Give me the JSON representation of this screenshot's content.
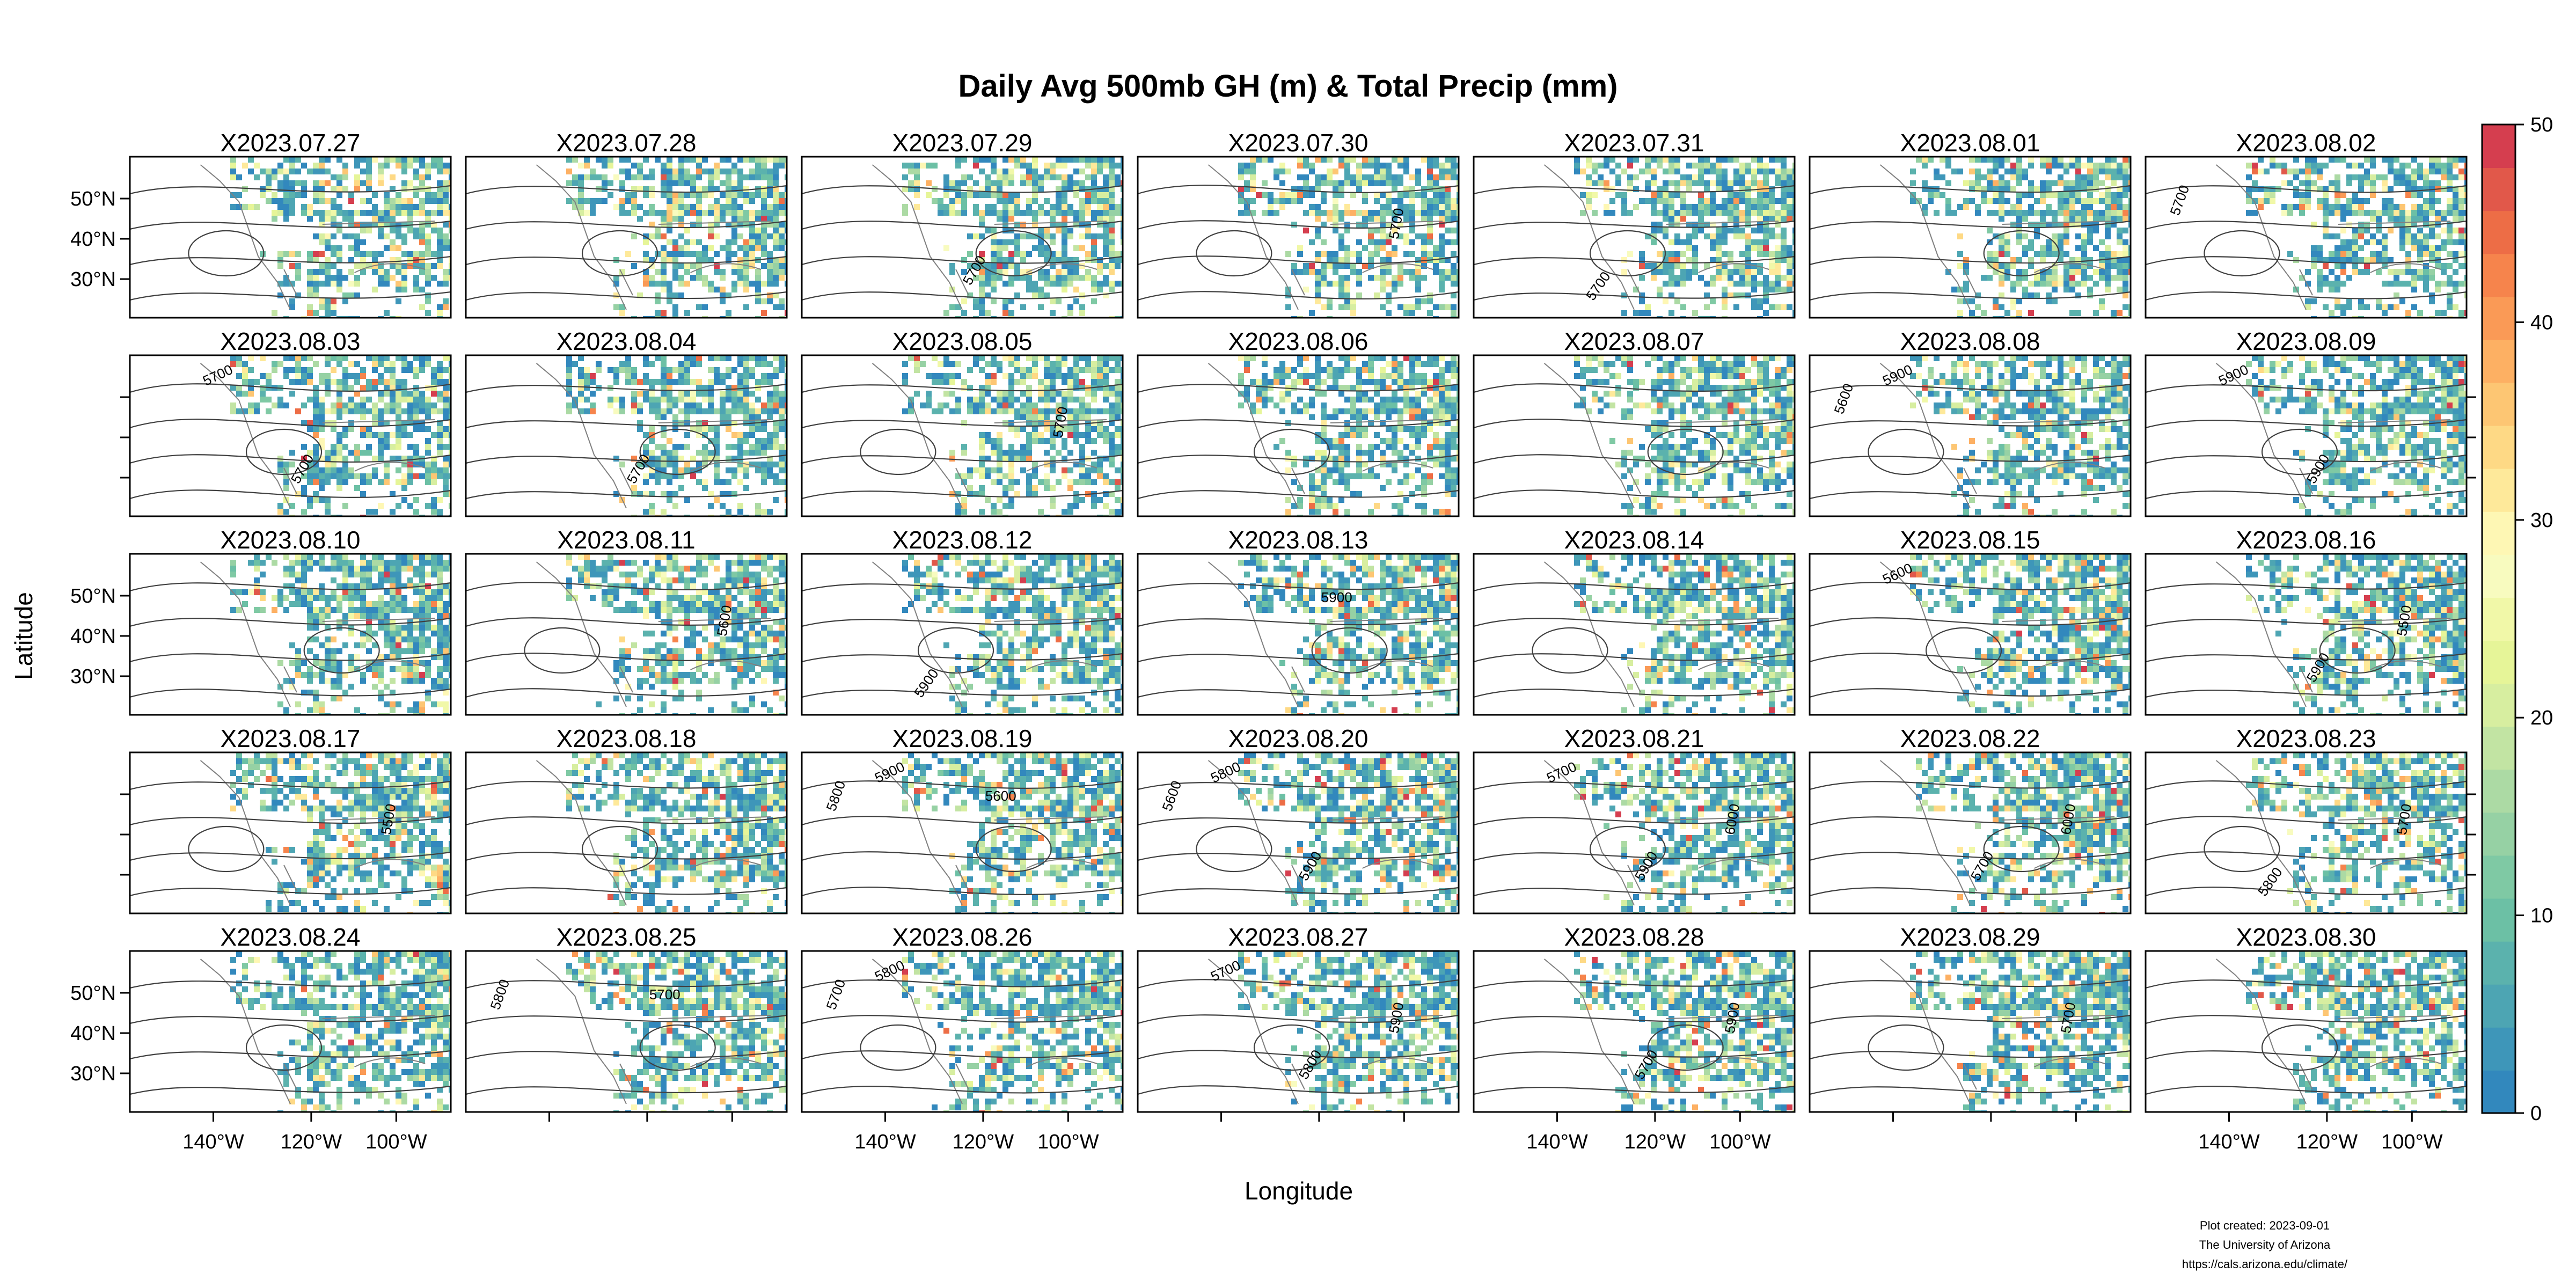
{
  "title": "Daily Avg 500mb GH (m) & Total Precip (mm)",
  "xlabel": "Longitude",
  "ylabel": "Latitude",
  "lat_ticks": [
    "50°N",
    "40°N",
    "30°N"
  ],
  "lon_ticks": [
    "140°W",
    "120°W",
    "100°W"
  ],
  "colorbar": {
    "min": 0,
    "max": 50,
    "ticks": [
      "0",
      "10",
      "20",
      "30",
      "40",
      "50"
    ],
    "colors": [
      "#3288bd",
      "#3e96b9",
      "#4da5b3",
      "#5bb2ad",
      "#6cc0a5",
      "#7fc9a4",
      "#96d1a4",
      "#acdaa4",
      "#c2e4a3",
      "#d7eea0",
      "#e6f598",
      "#f1f8a8",
      "#f8fbbf",
      "#fef7b4",
      "#fee99a",
      "#fed985",
      "#fdc673",
      "#fdb063",
      "#fa9a56",
      "#f6844c",
      "#ed6d46",
      "#e1584a",
      "#d53e4f"
    ]
  },
  "panels": [
    {
      "date": "X2023.07.27",
      "labels": []
    },
    {
      "date": "X2023.07.28",
      "labels": []
    },
    {
      "date": "X2023.07.29",
      "labels": [
        "5700"
      ]
    },
    {
      "date": "X2023.07.30",
      "labels": [
        "5700"
      ]
    },
    {
      "date": "X2023.07.31",
      "labels": [
        "5700"
      ]
    },
    {
      "date": "X2023.08.01",
      "labels": []
    },
    {
      "date": "X2023.08.02",
      "labels": [
        "5700"
      ]
    },
    {
      "date": "X2023.08.03",
      "labels": [
        "5700",
        "5700"
      ]
    },
    {
      "date": "X2023.08.04",
      "labels": [
        "5700"
      ]
    },
    {
      "date": "X2023.08.05",
      "labels": [
        "5700"
      ]
    },
    {
      "date": "X2023.08.06",
      "labels": []
    },
    {
      "date": "X2023.08.07",
      "labels": []
    },
    {
      "date": "X2023.08.08",
      "labels": [
        "5600",
        "5900"
      ]
    },
    {
      "date": "X2023.08.09",
      "labels": [
        "5900",
        "5900"
      ]
    },
    {
      "date": "X2023.08.10",
      "labels": []
    },
    {
      "date": "X2023.08.11",
      "labels": [
        "5600"
      ]
    },
    {
      "date": "X2023.08.12",
      "labels": [
        "5900"
      ]
    },
    {
      "date": "X2023.08.13",
      "labels": [
        "5900"
      ]
    },
    {
      "date": "X2023.08.14",
      "labels": []
    },
    {
      "date": "X2023.08.15",
      "labels": [
        "5600"
      ]
    },
    {
      "date": "X2023.08.16",
      "labels": [
        "5900",
        "5500"
      ]
    },
    {
      "date": "X2023.08.17",
      "labels": [
        "5500"
      ]
    },
    {
      "date": "X2023.08.18",
      "labels": []
    },
    {
      "date": "X2023.08.19",
      "labels": [
        "5600",
        "5800",
        "5900"
      ]
    },
    {
      "date": "X2023.08.20",
      "labels": [
        "5600",
        "5800",
        "5900"
      ]
    },
    {
      "date": "X2023.08.21",
      "labels": [
        "5700",
        "5900",
        "6000"
      ]
    },
    {
      "date": "X2023.08.22",
      "labels": [
        "5700",
        "6000"
      ]
    },
    {
      "date": "X2023.08.23",
      "labels": [
        "5700",
        "5800"
      ]
    },
    {
      "date": "X2023.08.24",
      "labels": []
    },
    {
      "date": "X2023.08.25",
      "labels": [
        "5700",
        "5800"
      ]
    },
    {
      "date": "X2023.08.26",
      "labels": [
        "5700",
        "5800"
      ]
    },
    {
      "date": "X2023.08.27",
      "labels": [
        "5700",
        "5800",
        "5900"
      ]
    },
    {
      "date": "X2023.08.28",
      "labels": [
        "5700",
        "5900"
      ]
    },
    {
      "date": "X2023.08.29",
      "labels": [
        "5700"
      ]
    },
    {
      "date": "X2023.08.30",
      "labels": []
    }
  ],
  "footer": {
    "line1": "Plot created: 2023-09-01",
    "line2": "The University of Arizona",
    "line3": "https://cals.arizona.edu/climate/"
  }
}
